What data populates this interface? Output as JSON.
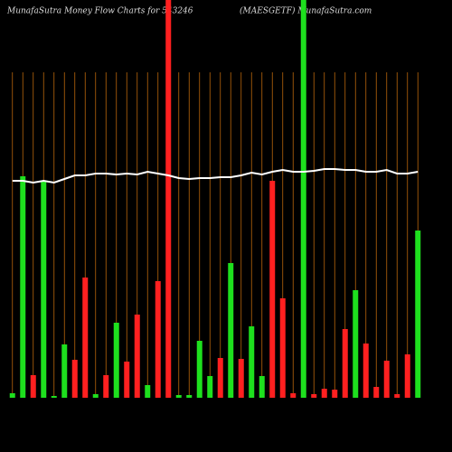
{
  "chart_data": {
    "type": "bar",
    "title": "MunafaSutra  Money Flow  Charts for 543246",
    "subtitle": "(MAESGETF) MunafaSutra.com",
    "ylim": [
      0,
      440
    ],
    "values": [
      5,
      245,
      25,
      240,
      2,
      59,
      42,
      133,
      4,
      25,
      83,
      40,
      92,
      14,
      129,
      440,
      3,
      3,
      63,
      24,
      44,
      149,
      43,
      79,
      24,
      240,
      110,
      5,
      440,
      4,
      10,
      9,
      76,
      119,
      60,
      12,
      41,
      4,
      48,
      185
    ],
    "colors": [
      "#1ee01e",
      "#1ee01e",
      "#ff2020",
      "#1ee01e",
      "#1ee01e",
      "#1ee01e",
      "#ff2020",
      "#ff2020",
      "#1ee01e",
      "#ff2020",
      "#1ee01e",
      "#ff2020",
      "#ff2020",
      "#1ee01e",
      "#ff2020",
      "#ff2020",
      "#1ee01e",
      "#1ee01e",
      "#1ee01e",
      "#1ee01e",
      "#ff2020",
      "#1ee01e",
      "#ff2020",
      "#1ee01e",
      "#1ee01e",
      "#ff2020",
      "#ff2020",
      "#ff2020",
      "#1ee01e",
      "#ff2020",
      "#ff2020",
      "#ff2020",
      "#ff2020",
      "#1ee01e",
      "#ff2020",
      "#ff2020",
      "#ff2020",
      "#ff2020",
      "#ff2020",
      "#1ee01e"
    ],
    "line": {
      "color": "#ffffff",
      "values": [
        240,
        240,
        238,
        240,
        238,
        242,
        246,
        246,
        248,
        248,
        247,
        248,
        247,
        250,
        248,
        246,
        243,
        242,
        243,
        243,
        244,
        244,
        246,
        249,
        247,
        250,
        252,
        250,
        250,
        251,
        253,
        253,
        252,
        252,
        250,
        250,
        252,
        248,
        248,
        250
      ]
    },
    "grid_color": "#b8660b"
  }
}
